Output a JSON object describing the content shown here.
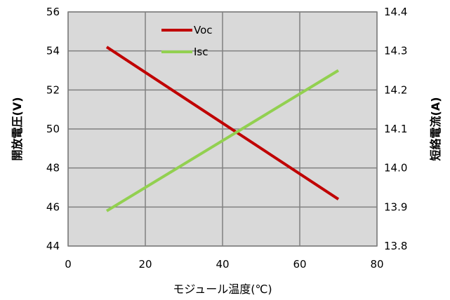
{
  "chart_data": {
    "type": "line",
    "xlabel": "モジュール温度(℃)",
    "ylabel_left": "開放電圧(V)",
    "ylabel_right": "短絡電流(A)",
    "xlim": [
      0,
      80
    ],
    "xticks": [
      0,
      20,
      40,
      60,
      80
    ],
    "ylim_left": [
      44,
      56
    ],
    "yticks_left": [
      44,
      46,
      48,
      50,
      52,
      54,
      56
    ],
    "ylim_right": [
      13.8,
      14.4
    ],
    "yticks_right": [
      "13.8",
      "13.9",
      "14.0",
      "14.1",
      "14.2",
      "14.3",
      "14.4"
    ],
    "grid": true,
    "legend_position": "top-left",
    "series": [
      {
        "name": "Voc",
        "axis": "left",
        "color": "#c00000",
        "points": [
          [
            10,
            54.2
          ],
          [
            70,
            46.4
          ]
        ]
      },
      {
        "name": "Isc",
        "axis": "right",
        "color": "#92d050",
        "points": [
          [
            10,
            13.89
          ],
          [
            70,
            14.25
          ]
        ]
      }
    ]
  }
}
